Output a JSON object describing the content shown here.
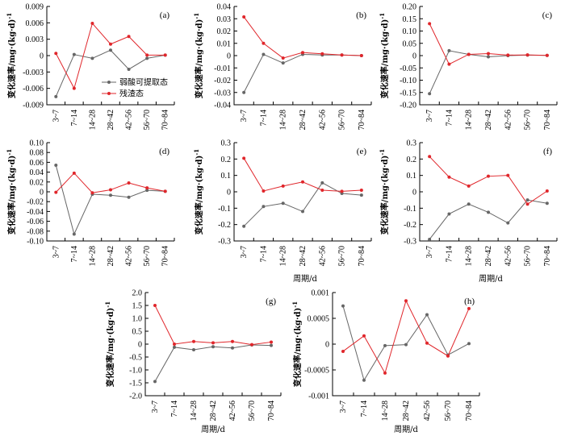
{
  "y_axis_title": "变化速率/mg·(kg·d)",
  "y_axis_superscript": "-1",
  "x_axis_title": "周期/d",
  "legend": [
    {
      "name": "弱酸可提取态",
      "color": "#666666"
    },
    {
      "name": "残渣态",
      "color": "#e0262b"
    }
  ],
  "chart_data": [
    {
      "type": "line",
      "panel": "(a)",
      "categories": [
        "3~7",
        "7~14",
        "14~28",
        "28~42",
        "42~56",
        "56~70",
        "70~84"
      ],
      "ylim": [
        -0.009,
        0.009
      ],
      "yticks": [
        -0.009,
        -0.006,
        -0.003,
        0,
        0.003,
        0.006,
        0.009
      ],
      "ytick_labels": [
        "-0.009",
        "-0.006",
        "-0.003",
        "0",
        "0.003",
        "0.006",
        "0.009"
      ],
      "series": [
        {
          "name": "弱酸可提取态",
          "values": [
            -0.0075,
            0.0002,
            -0.0005,
            0.001,
            -0.0025,
            -0.0005,
            0.0001
          ]
        },
        {
          "name": "残渣态",
          "values": [
            0.0004,
            -0.006,
            0.0059,
            0.0021,
            0.0035,
            0.0001,
            0.0001
          ]
        }
      ]
    },
    {
      "type": "line",
      "panel": "(b)",
      "categories": [
        "3~7",
        "7~14",
        "14~28",
        "28~42",
        "42~56",
        "56~70",
        "70~84"
      ],
      "ylim": [
        -0.04,
        0.04
      ],
      "yticks": [
        -0.04,
        -0.03,
        -0.02,
        -0.01,
        0,
        0.01,
        0.02,
        0.03,
        0.04
      ],
      "ytick_labels": [
        "-0.04",
        "-0.03",
        "-0.02",
        "-0.01",
        "0",
        "0.01",
        "0.02",
        "0.03",
        "0.04"
      ],
      "series": [
        {
          "name": "弱酸可提取态",
          "values": [
            -0.03,
            0.001,
            -0.006,
            0.001,
            0.0005,
            0.0005,
            0.0
          ]
        },
        {
          "name": "残渣态",
          "values": [
            0.0315,
            0.01,
            -0.002,
            0.0025,
            0.0015,
            0.0005,
            0.0
          ]
        }
      ]
    },
    {
      "type": "line",
      "panel": "(c)",
      "categories": [
        "3~7",
        "7~14",
        "14~28",
        "28~42",
        "42~56",
        "56~70",
        "70~84"
      ],
      "ylim": [
        -0.2,
        0.2
      ],
      "yticks": [
        -0.2,
        -0.15,
        -0.1,
        -0.05,
        0,
        0.05,
        0.1,
        0.15,
        0.2
      ],
      "ytick_labels": [
        "-0.20",
        "-0.15",
        "-0.10",
        "-0.05",
        "0",
        "0.05",
        "0.10",
        "0.15",
        "0.20"
      ],
      "series": [
        {
          "name": "弱酸可提取态",
          "values": [
            -0.155,
            0.02,
            0.005,
            -0.005,
            0.0,
            0.002,
            0.001
          ]
        },
        {
          "name": "残渣态",
          "values": [
            0.13,
            -0.035,
            0.005,
            0.008,
            0.002,
            0.003,
            0.001
          ]
        }
      ]
    },
    {
      "type": "line",
      "panel": "(d)",
      "categories": [
        "3~7",
        "7~14",
        "14~28",
        "28~42",
        "42~56",
        "56~70",
        "70~84"
      ],
      "ylim": [
        -0.1,
        0.1
      ],
      "yticks": [
        -0.1,
        -0.08,
        -0.06,
        -0.04,
        -0.02,
        0,
        0.02,
        0.04,
        0.06,
        0.08,
        0.1
      ],
      "ytick_labels": [
        "-0.10",
        "-0.08",
        "-0.06",
        "-0.04",
        "-0.02",
        "0",
        "0.02",
        "0.04",
        "0.06",
        "0.08",
        "0.10"
      ],
      "series": [
        {
          "name": "弱酸可提取态",
          "values": [
            0.054,
            -0.086,
            -0.005,
            -0.007,
            -0.011,
            0.003,
            0.001
          ]
        },
        {
          "name": "残渣态",
          "values": [
            -0.001,
            0.038,
            -0.002,
            0.004,
            0.018,
            0.008,
            0.001
          ]
        }
      ]
    },
    {
      "type": "line",
      "panel": "(e)",
      "categories": [
        "3~7",
        "7~14",
        "14~28",
        "28~42",
        "42~56",
        "56~70",
        "70~84"
      ],
      "ylim": [
        -0.3,
        0.3
      ],
      "yticks": [
        -0.3,
        -0.2,
        -0.1,
        0,
        0.1,
        0.2,
        0.3
      ],
      "ytick_labels": [
        "-0.3",
        "-0.2",
        "-0.1",
        "0",
        "0.1",
        "0.2",
        "0.3"
      ],
      "series": [
        {
          "name": "弱酸可提取态",
          "values": [
            -0.21,
            -0.09,
            -0.07,
            -0.12,
            0.055,
            -0.01,
            -0.02
          ]
        },
        {
          "name": "残渣态",
          "values": [
            0.205,
            0.005,
            0.035,
            0.06,
            0.01,
            0.003,
            0.01
          ]
        }
      ]
    },
    {
      "type": "line",
      "panel": "(f)",
      "categories": [
        "3~7",
        "7~14",
        "14~28",
        "28~42",
        "42~56",
        "56~70",
        "70~84"
      ],
      "ylim": [
        -0.3,
        0.3
      ],
      "yticks": [
        -0.3,
        -0.2,
        -0.1,
        0,
        0.1,
        0.2,
        0.3
      ],
      "ytick_labels": [
        "-0.3",
        "-0.2",
        "-0.1",
        "0",
        "0.1",
        "0.2",
        "0.3"
      ],
      "series": [
        {
          "name": "弱酸可提取态",
          "values": [
            -0.29,
            -0.135,
            -0.075,
            -0.125,
            -0.19,
            -0.05,
            -0.07
          ]
        },
        {
          "name": "残渣态",
          "values": [
            0.215,
            0.09,
            0.035,
            0.095,
            0.1,
            -0.075,
            0.005
          ]
        }
      ]
    },
    {
      "type": "line",
      "panel": "(g)",
      "categories": [
        "3~7",
        "7~14",
        "14~28",
        "28~42",
        "42~56",
        "56~70",
        "70~84"
      ],
      "ylim": [
        -2.0,
        2.0
      ],
      "yticks": [
        -2.0,
        -1.5,
        -1.0,
        -0.5,
        0,
        0.5,
        1.0,
        1.5,
        2.0
      ],
      "ytick_labels": [
        "-2.0",
        "-1.5",
        "-1.0",
        "-0.5",
        "0",
        "0.5",
        "1.0",
        "1.5",
        "2.0"
      ],
      "series": [
        {
          "name": "弱酸可提取态",
          "values": [
            -1.45,
            -0.12,
            -0.22,
            -0.1,
            -0.15,
            -0.03,
            -0.05
          ]
        },
        {
          "name": "残渣态",
          "values": [
            1.5,
            0.0,
            0.1,
            0.05,
            0.1,
            -0.02,
            0.08
          ]
        }
      ]
    },
    {
      "type": "line",
      "panel": "(h)",
      "categories": [
        "3~7",
        "7~14",
        "14~28",
        "28~42",
        "42~56",
        "56~70",
        "70~84"
      ],
      "ylim": [
        -0.001,
        0.001
      ],
      "yticks": [
        -0.001,
        -0.0005,
        0,
        0.0005,
        0.001
      ],
      "ytick_labels": [
        "-0.001",
        "-0.0005",
        "0",
        "0.0005",
        "0.001"
      ],
      "series": [
        {
          "name": "弱酸可提取态",
          "values": [
            0.00074,
            -0.0007,
            -3e-05,
            -1e-05,
            0.00057,
            -0.00021,
            1e-05
          ]
        },
        {
          "name": "残渣态",
          "values": [
            -0.00014,
            0.00016,
            -0.00056,
            0.00084,
            2e-05,
            -0.00023,
            0.00069
          ]
        }
      ]
    }
  ]
}
